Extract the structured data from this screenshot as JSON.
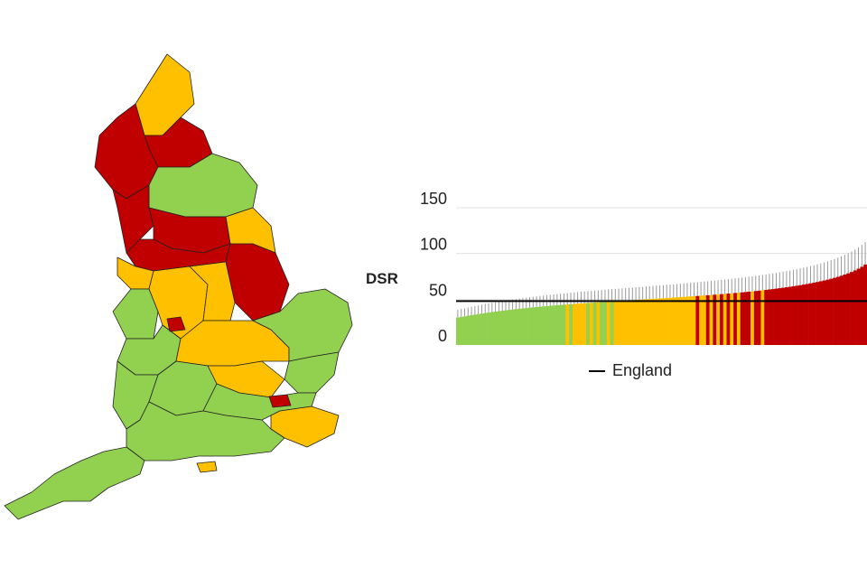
{
  "chart_data": {
    "type": "bar",
    "ylabel": "DSR",
    "yticks": [
      0,
      50,
      100,
      150
    ],
    "ylim": [
      0,
      150
    ],
    "grid": true,
    "england_value": 48,
    "legend": {
      "label": "England",
      "position": "bottom"
    },
    "colors": {
      "green": "#92d050",
      "amber": "#ffc000",
      "red": "#c00000",
      "reference": "#000000",
      "error_bar": "#999999"
    },
    "category_colors": [
      "green",
      "green",
      "green",
      "green",
      "green",
      "green",
      "green",
      "green",
      "green",
      "green",
      "green",
      "green",
      "green",
      "green",
      "green",
      "green",
      "green",
      "green",
      "green",
      "green",
      "green",
      "green",
      "green",
      "green",
      "green",
      "green",
      "green",
      "green",
      "green",
      "green",
      "green",
      "green",
      "amber",
      "green",
      "amber",
      "amber",
      "amber",
      "amber",
      "green",
      "amber",
      "green",
      "amber",
      "green",
      "green",
      "amber",
      "green",
      "amber",
      "amber",
      "amber",
      "amber",
      "amber",
      "amber",
      "amber",
      "amber",
      "amber",
      "amber",
      "amber",
      "amber",
      "amber",
      "amber",
      "amber",
      "amber",
      "amber",
      "amber",
      "amber",
      "amber",
      "amber",
      "amber",
      "amber",
      "amber",
      "red",
      "amber",
      "amber",
      "red",
      "amber",
      "red",
      "amber",
      "red",
      "amber",
      "red",
      "amber",
      "red",
      "amber",
      "red",
      "red",
      "red",
      "amber",
      "red",
      "red",
      "amber",
      "red",
      "red",
      "red",
      "red",
      "red",
      "red",
      "red",
      "red",
      "red",
      "red",
      "red",
      "red",
      "red",
      "red",
      "red",
      "red",
      "red",
      "red",
      "red",
      "red",
      "red",
      "red",
      "red",
      "red",
      "red",
      "red",
      "red",
      "red",
      "red",
      "red"
    ],
    "values": [
      30.0,
      30.7,
      31.3,
      32.0,
      32.6,
      33.2,
      33.8,
      34.4,
      34.9,
      35.5,
      36.0,
      36.5,
      37.0,
      37.5,
      37.9,
      38.4,
      38.8,
      39.2,
      39.6,
      40.0,
      40.4,
      40.8,
      41.2,
      41.5,
      41.9,
      42.2,
      42.5,
      42.9,
      43.2,
      43.5,
      43.8,
      44.1,
      44.3,
      44.6,
      44.9,
      45.2,
      45.4,
      45.7,
      45.9,
      46.2,
      46.4,
      46.7,
      46.9,
      47.2,
      47.4,
      47.7,
      47.9,
      48.1,
      48.4,
      48.6,
      48.8,
      49.0,
      49.3,
      49.5,
      49.7,
      50.0,
      50.2,
      50.4,
      50.7,
      50.9,
      51.1,
      51.4,
      51.6,
      51.8,
      52.1,
      52.3,
      52.6,
      52.8,
      53.1,
      53.4,
      53.6,
      53.9,
      54.2,
      54.4,
      54.7,
      55.0,
      55.3,
      55.6,
      55.9,
      56.2,
      56.5,
      56.9,
      57.2,
      57.5,
      57.9,
      58.3,
      58.6,
      59.0,
      59.4,
      59.8,
      60.2,
      60.7,
      61.1,
      61.6,
      62.1,
      62.6,
      63.1,
      63.6,
      64.2,
      64.8,
      65.4,
      66.0,
      66.7,
      67.4,
      68.1,
      68.9,
      69.7,
      70.5,
      71.4,
      72.4,
      73.4,
      74.5,
      75.7,
      77.0,
      78.3,
      79.8,
      81.5,
      83.4,
      85.5,
      88.0
    ]
  },
  "map": {
    "regions": [
      {
        "name": "north-east-north",
        "color": "amber"
      },
      {
        "name": "north-east-south",
        "color": "red"
      },
      {
        "name": "cumbria",
        "color": "red"
      },
      {
        "name": "north-yorkshire",
        "color": "green"
      },
      {
        "name": "east-riding",
        "color": "amber"
      },
      {
        "name": "lancashire",
        "color": "red"
      },
      {
        "name": "west-yorkshire",
        "color": "red"
      },
      {
        "name": "south-yorkshire",
        "color": "red"
      },
      {
        "name": "lincolnshire",
        "color": "red"
      },
      {
        "name": "merseyside",
        "color": "amber"
      },
      {
        "name": "cheshire",
        "color": "green"
      },
      {
        "name": "derbyshire",
        "color": "amber"
      },
      {
        "name": "nottinghamshire",
        "color": "amber"
      },
      {
        "name": "staffordshire",
        "color": "green"
      },
      {
        "name": "leicestershire",
        "color": "amber"
      },
      {
        "name": "norfolk",
        "color": "green"
      },
      {
        "name": "suffolk",
        "color": "green"
      },
      {
        "name": "cambridgeshire",
        "color": "amber"
      },
      {
        "name": "welsh-border",
        "color": "green"
      },
      {
        "name": "oxfordshire",
        "color": "green"
      },
      {
        "name": "home-counties",
        "color": "green"
      },
      {
        "name": "kent",
        "color": "amber"
      },
      {
        "name": "south-coast",
        "color": "green"
      },
      {
        "name": "south-west",
        "color": "green"
      },
      {
        "name": "isle-of-wight",
        "color": "amber"
      },
      {
        "name": "birmingham",
        "color": "red"
      },
      {
        "name": "london-east",
        "color": "red"
      }
    ]
  }
}
